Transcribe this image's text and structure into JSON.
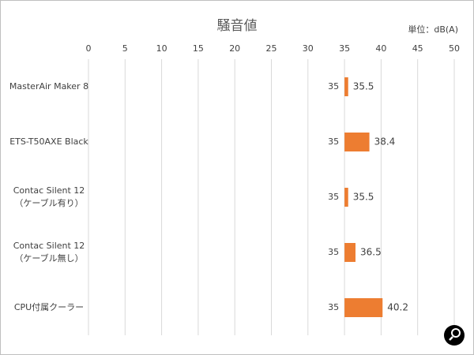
{
  "chart_data": {
    "type": "floating-bar",
    "orientation": "horizontal",
    "title": "騒音値",
    "unit": "単位：dB(A)",
    "categories": [
      [
        "MasterAir Maker 8"
      ],
      [
        "ETS-T50AXE Black"
      ],
      [
        "Contac Silent 12",
        "（ケーブル有り）"
      ],
      [
        "Contac Silent 12",
        "（ケーブル無し）"
      ],
      [
        "CPU付属クーラー"
      ]
    ],
    "starts": [
      35,
      35,
      35,
      35,
      35
    ],
    "values": [
      35.5,
      38.4,
      35.5,
      36.5,
      40.2
    ],
    "color": "#ed7d31",
    "xlim": [
      0,
      50
    ],
    "xticks": [
      0,
      5,
      10,
      15,
      20,
      25,
      30,
      35,
      40,
      45,
      50
    ],
    "grid": true
  }
}
